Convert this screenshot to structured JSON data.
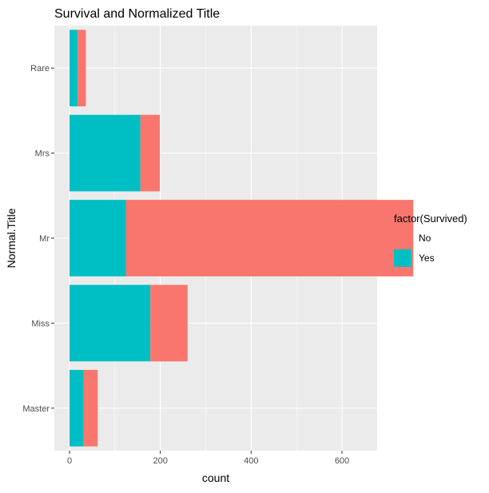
{
  "chart_data": {
    "type": "bar",
    "orientation": "horizontal",
    "stacked": true,
    "title": "Survival and Normalized Title",
    "xlabel": "count",
    "ylabel": "Normal.Title",
    "categories": [
      "Master",
      "Miss",
      "Mr",
      "Mrs",
      "Rare"
    ],
    "xlim": [
      0,
      790
    ],
    "xticks": [
      0,
      200,
      400,
      600
    ],
    "grid": true,
    "legend": {
      "title": "factor(Survived)",
      "position": "right",
      "entries": [
        {
          "label": "No",
          "color": "#F8766D"
        },
        {
          "label": "Yes",
          "color": "#00BFC4"
        }
      ]
    },
    "series": [
      {
        "name": "Yes",
        "color": "#00BFC4",
        "values": [
          31,
          178,
          124,
          156,
          18
        ]
      },
      {
        "name": "No",
        "color": "#F8766D",
        "values": [
          31,
          82,
          633,
          43,
          18
        ]
      }
    ]
  }
}
